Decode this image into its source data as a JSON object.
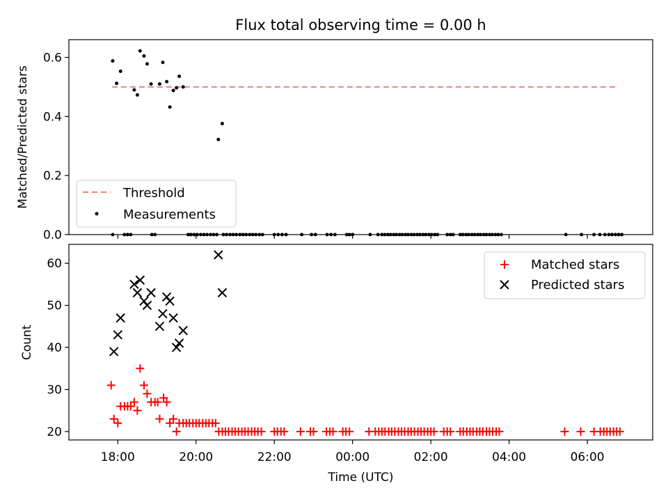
{
  "figure": {
    "title": "Flux total observing time = 0.00 h"
  },
  "chart_data": [
    {
      "type": "scatter",
      "name": "top-panel",
      "ylabel": "Matched/Predicted stars",
      "xlabel": "",
      "x_axis_unit": "hours since 00:00 UTC of the first night",
      "xlim": [
        16.75,
        31.67
      ],
      "ylim": [
        0.0,
        0.66
      ],
      "yticks": [
        0.0,
        0.2,
        0.4,
        0.6
      ],
      "ytick_labels": [
        "0.0",
        "0.2",
        "0.4",
        "0.6"
      ],
      "grid": false,
      "legend": {
        "placement": "lower-left",
        "entries": [
          "Threshold",
          "Measurements"
        ]
      },
      "threshold": {
        "name": "Threshold",
        "value": 0.5,
        "x_range": [
          17.85,
          30.8
        ],
        "color": "#f08080",
        "style": "dashed"
      },
      "series": [
        {
          "name": "Measurements",
          "color": "#000000",
          "points": [
            [
              17.87,
              0.588
            ],
            [
              17.97,
              0.512
            ],
            [
              18.07,
              0.553
            ],
            [
              18.42,
              0.49
            ],
            [
              18.5,
              0.473
            ],
            [
              18.57,
              0.622
            ],
            [
              18.67,
              0.605
            ],
            [
              18.75,
              0.578
            ],
            [
              18.85,
              0.51
            ],
            [
              19.07,
              0.51
            ],
            [
              19.15,
              0.583
            ],
            [
              19.25,
              0.518
            ],
            [
              19.33,
              0.432
            ],
            [
              19.42,
              0.488
            ],
            [
              19.5,
              0.497
            ],
            [
              19.57,
              0.536
            ],
            [
              19.67,
              0.5
            ],
            [
              20.57,
              0.322
            ],
            [
              20.67,
              0.376
            ],
            [
              17.87,
              0
            ],
            [
              18.17,
              0
            ],
            [
              18.25,
              0
            ],
            [
              18.33,
              0
            ],
            [
              18.87,
              0
            ],
            [
              18.95,
              0
            ],
            [
              19.8,
              0
            ],
            [
              19.87,
              0
            ],
            [
              19.95,
              0
            ],
            [
              20.03,
              0
            ],
            [
              20.12,
              0
            ],
            [
              20.2,
              0
            ],
            [
              20.28,
              0
            ],
            [
              20.37,
              0
            ],
            [
              20.45,
              0
            ],
            [
              20.53,
              0
            ],
            [
              20.7,
              0
            ],
            [
              20.78,
              0
            ],
            [
              20.87,
              0
            ],
            [
              20.95,
              0
            ],
            [
              21.03,
              0
            ],
            [
              21.12,
              0
            ],
            [
              21.2,
              0
            ],
            [
              21.28,
              0
            ],
            [
              21.37,
              0
            ],
            [
              21.45,
              0
            ],
            [
              21.53,
              0
            ],
            [
              21.62,
              0
            ],
            [
              21.7,
              0
            ],
            [
              22.0,
              0
            ],
            [
              22.1,
              0
            ],
            [
              22.2,
              0
            ],
            [
              22.3,
              0
            ],
            [
              22.7,
              0
            ],
            [
              22.95,
              0
            ],
            [
              23.05,
              0
            ],
            [
              23.35,
              0
            ],
            [
              23.45,
              0
            ],
            [
              23.55,
              0
            ],
            [
              23.85,
              0
            ],
            [
              23.92,
              0
            ],
            [
              24.0,
              0
            ],
            [
              24.45,
              0
            ],
            [
              24.65,
              0
            ],
            [
              24.75,
              0
            ],
            [
              24.82,
              0
            ],
            [
              24.9,
              0
            ],
            [
              24.97,
              0
            ],
            [
              25.05,
              0
            ],
            [
              25.12,
              0
            ],
            [
              25.2,
              0
            ],
            [
              25.27,
              0
            ],
            [
              25.35,
              0
            ],
            [
              25.42,
              0
            ],
            [
              25.5,
              0
            ],
            [
              25.57,
              0
            ],
            [
              25.65,
              0
            ],
            [
              25.72,
              0
            ],
            [
              25.8,
              0
            ],
            [
              25.87,
              0
            ],
            [
              25.95,
              0
            ],
            [
              26.02,
              0
            ],
            [
              26.1,
              0
            ],
            [
              26.17,
              0
            ],
            [
              26.42,
              0
            ],
            [
              26.5,
              0
            ],
            [
              26.57,
              0
            ],
            [
              26.75,
              0
            ],
            [
              26.82,
              0
            ],
            [
              26.9,
              0
            ],
            [
              26.97,
              0
            ],
            [
              27.05,
              0
            ],
            [
              27.12,
              0
            ],
            [
              27.2,
              0
            ],
            [
              27.27,
              0
            ],
            [
              27.35,
              0
            ],
            [
              27.42,
              0
            ],
            [
              27.5,
              0
            ],
            [
              27.57,
              0
            ],
            [
              27.65,
              0
            ],
            [
              27.72,
              0
            ],
            [
              27.8,
              0
            ],
            [
              29.45,
              0
            ],
            [
              29.85,
              0
            ],
            [
              30.17,
              0
            ],
            [
              30.32,
              0
            ],
            [
              30.45,
              0
            ],
            [
              30.55,
              0
            ],
            [
              30.63,
              0
            ],
            [
              30.72,
              0
            ],
            [
              30.8,
              0
            ],
            [
              30.88,
              0
            ]
          ]
        }
      ]
    },
    {
      "type": "scatter",
      "name": "bottom-panel",
      "ylabel": "Count",
      "xlabel": "Time (UTC)",
      "x_axis_unit": "hours since 00:00 UTC of the first night",
      "xlim": [
        16.75,
        31.67
      ],
      "ylim": [
        18.0,
        64.5
      ],
      "yticks": [
        20,
        30,
        40,
        50,
        60
      ],
      "ytick_labels": [
        "20",
        "30",
        "40",
        "50",
        "60"
      ],
      "xticks": [
        18,
        20,
        22,
        24,
        26,
        28,
        30
      ],
      "xtick_labels": [
        "18:00",
        "20:00",
        "22:00",
        "00:00",
        "02:00",
        "04:00",
        "06:00"
      ],
      "grid": false,
      "legend": {
        "placement": "top-right",
        "entries": [
          "Matched stars",
          "Predicted stars"
        ]
      },
      "series": [
        {
          "name": "Matched stars",
          "marker": "plus",
          "color": "#ff0000",
          "points": [
            [
              17.83,
              31
            ],
            [
              17.9,
              23
            ],
            [
              18.0,
              22
            ],
            [
              18.07,
              26
            ],
            [
              18.17,
              26
            ],
            [
              18.25,
              26
            ],
            [
              18.33,
              26
            ],
            [
              18.42,
              27
            ],
            [
              18.5,
              25
            ],
            [
              18.57,
              35
            ],
            [
              18.67,
              31
            ],
            [
              18.75,
              29
            ],
            [
              18.85,
              27
            ],
            [
              18.95,
              27
            ],
            [
              19.02,
              27
            ],
            [
              19.07,
              23
            ],
            [
              19.17,
              28
            ],
            [
              19.25,
              27
            ],
            [
              19.33,
              22
            ],
            [
              19.42,
              23
            ],
            [
              19.5,
              20
            ],
            [
              19.57,
              22
            ],
            [
              19.67,
              22
            ],
            [
              19.75,
              22
            ],
            [
              19.83,
              22
            ],
            [
              19.92,
              22
            ],
            [
              20.0,
              22
            ],
            [
              20.08,
              22
            ],
            [
              20.17,
              22
            ],
            [
              20.25,
              22
            ],
            [
              20.33,
              22
            ],
            [
              20.42,
              22
            ],
            [
              20.5,
              22
            ],
            [
              20.58,
              20
            ],
            [
              20.67,
              20
            ],
            [
              20.75,
              20
            ],
            [
              20.83,
              20
            ],
            [
              20.92,
              20
            ],
            [
              21.0,
              20
            ],
            [
              21.08,
              20
            ],
            [
              21.17,
              20
            ],
            [
              21.25,
              20
            ],
            [
              21.33,
              20
            ],
            [
              21.42,
              20
            ],
            [
              21.5,
              20
            ],
            [
              21.58,
              20
            ],
            [
              21.67,
              20
            ],
            [
              22.0,
              20
            ],
            [
              22.08,
              20
            ],
            [
              22.17,
              20
            ],
            [
              22.25,
              20
            ],
            [
              22.67,
              20
            ],
            [
              22.92,
              20
            ],
            [
              23.0,
              20
            ],
            [
              23.33,
              20
            ],
            [
              23.42,
              20
            ],
            [
              23.5,
              20
            ],
            [
              23.75,
              20
            ],
            [
              23.83,
              20
            ],
            [
              23.92,
              20
            ],
            [
              24.42,
              20
            ],
            [
              24.58,
              20
            ],
            [
              24.67,
              20
            ],
            [
              24.75,
              20
            ],
            [
              24.83,
              20
            ],
            [
              24.92,
              20
            ],
            [
              25.0,
              20
            ],
            [
              25.08,
              20
            ],
            [
              25.17,
              20
            ],
            [
              25.25,
              20
            ],
            [
              25.33,
              20
            ],
            [
              25.42,
              20
            ],
            [
              25.5,
              20
            ],
            [
              25.58,
              20
            ],
            [
              25.67,
              20
            ],
            [
              25.75,
              20
            ],
            [
              25.83,
              20
            ],
            [
              25.92,
              20
            ],
            [
              26.0,
              20
            ],
            [
              26.08,
              20
            ],
            [
              26.33,
              20
            ],
            [
              26.42,
              20
            ],
            [
              26.5,
              20
            ],
            [
              26.75,
              20
            ],
            [
              26.83,
              20
            ],
            [
              26.92,
              20
            ],
            [
              27.0,
              20
            ],
            [
              27.08,
              20
            ],
            [
              27.17,
              20
            ],
            [
              27.25,
              20
            ],
            [
              27.33,
              20
            ],
            [
              27.42,
              20
            ],
            [
              27.5,
              20
            ],
            [
              27.58,
              20
            ],
            [
              27.67,
              20
            ],
            [
              27.75,
              20
            ],
            [
              29.42,
              20
            ],
            [
              29.83,
              20
            ],
            [
              30.17,
              20
            ],
            [
              30.33,
              20
            ],
            [
              30.42,
              20
            ],
            [
              30.5,
              20
            ],
            [
              30.58,
              20
            ],
            [
              30.67,
              20
            ],
            [
              30.75,
              20
            ],
            [
              30.83,
              20
            ]
          ]
        },
        {
          "name": "Predicted stars",
          "marker": "x",
          "color": "#000000",
          "points": [
            [
              17.9,
              39
            ],
            [
              18.0,
              43
            ],
            [
              18.07,
              47
            ],
            [
              18.42,
              55
            ],
            [
              18.5,
              53
            ],
            [
              18.57,
              56
            ],
            [
              18.67,
              51
            ],
            [
              18.75,
              50
            ],
            [
              18.85,
              53
            ],
            [
              19.07,
              45
            ],
            [
              19.15,
              48
            ],
            [
              19.25,
              52
            ],
            [
              19.33,
              51
            ],
            [
              19.42,
              47
            ],
            [
              19.5,
              40
            ],
            [
              19.57,
              41
            ],
            [
              19.67,
              44
            ],
            [
              20.57,
              62
            ],
            [
              20.67,
              53
            ]
          ]
        }
      ]
    }
  ]
}
